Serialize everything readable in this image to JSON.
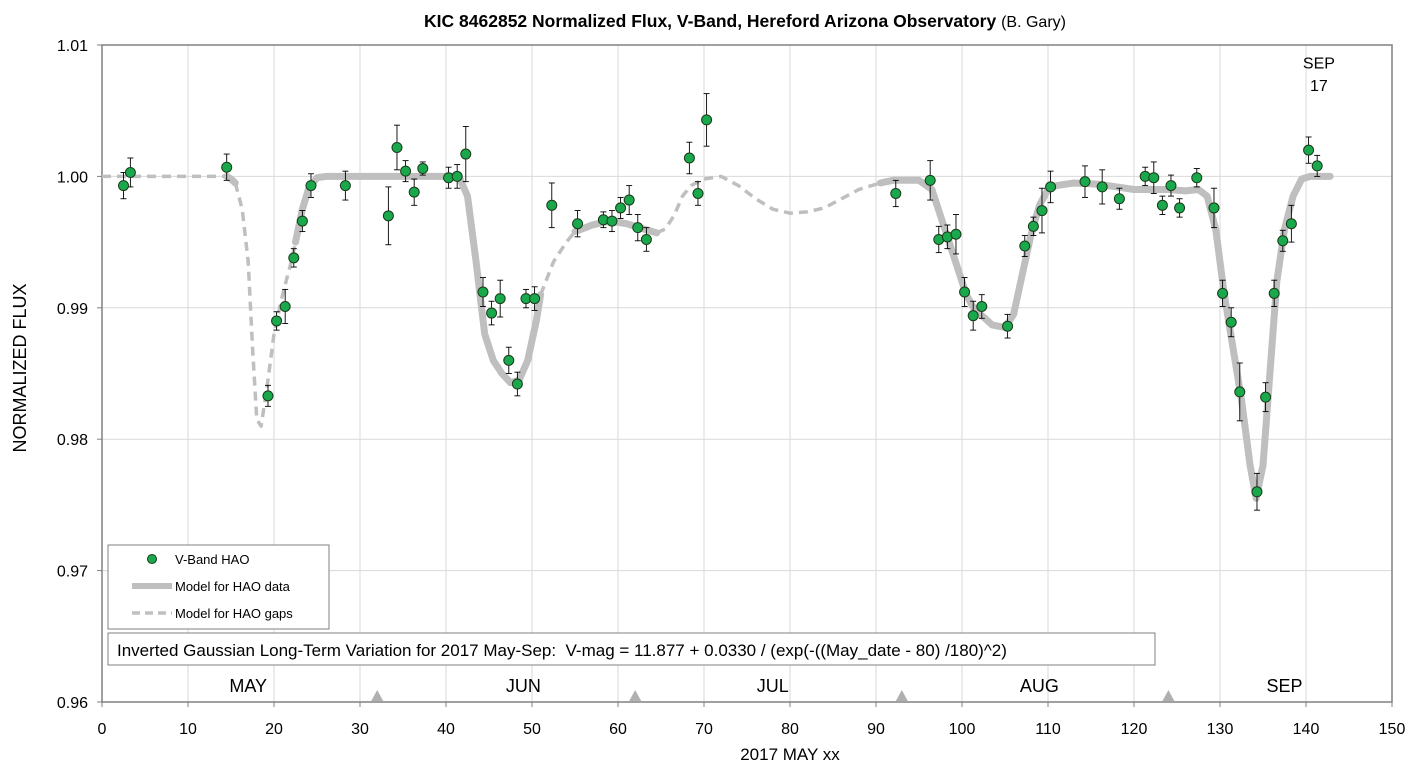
{
  "chart_data": {
    "type": "scatter",
    "title": "KIC 8462852 Normalized Flux, V-Band, Hereford Arizona Observatory",
    "title_credit": "(B. Gary)",
    "xlabel": "2017 MAY xx",
    "ylabel": "NORMALIZED FLUX",
    "xlim": [
      0,
      150
    ],
    "ylim": [
      0.96,
      1.01
    ],
    "x_ticks": [
      0,
      10,
      20,
      30,
      40,
      50,
      60,
      70,
      80,
      90,
      100,
      110,
      120,
      130,
      140,
      150
    ],
    "y_ticks": [
      0.96,
      0.97,
      0.98,
      0.99,
      1.0,
      1.01
    ],
    "y_tick_labels": [
      "0.96",
      "0.97",
      "0.98",
      "0.99",
      "1.00",
      "1.01"
    ],
    "grid": true,
    "legend_position": "bottom-left",
    "month_labels": [
      {
        "text": "MAY",
        "x": 17
      },
      {
        "text": "JUN",
        "x": 49
      },
      {
        "text": "JUL",
        "x": 78
      },
      {
        "text": "AUG",
        "x": 109
      },
      {
        "text": "SEP",
        "x": 137.5
      }
    ],
    "month_boundaries": [
      32,
      62,
      93,
      124
    ],
    "annotations": [
      {
        "text": "SEP",
        "x": 141.5,
        "y": 1.0082
      },
      {
        "text": "17",
        "x": 141.5,
        "y": 1.0065
      }
    ],
    "formula_box": "Inverted Gaussian Long-Term Variation for 2017 May-Sep:  V-mag = 11.877 + 0.0330 / (exp(-((May_date - 80) /180)^2)",
    "series": [
      {
        "name": "V-Band HAO",
        "kind": "points",
        "color": "#1aa84c",
        "points": [
          {
            "x": 2.5,
            "y": 0.9993,
            "err": 0.001
          },
          {
            "x": 3.3,
            "y": 1.0003,
            "err": 0.0011
          },
          {
            "x": 14.5,
            "y": 1.0007,
            "err": 0.001
          },
          {
            "x": 19.3,
            "y": 0.9833,
            "err": 0.0008
          },
          {
            "x": 20.3,
            "y": 0.989,
            "err": 0.0007
          },
          {
            "x": 21.3,
            "y": 0.9901,
            "err": 0.0013
          },
          {
            "x": 22.3,
            "y": 0.9938,
            "err": 0.0007
          },
          {
            "x": 23.3,
            "y": 0.9966,
            "err": 0.0008
          },
          {
            "x": 24.3,
            "y": 0.9993,
            "err": 0.0009
          },
          {
            "x": 28.3,
            "y": 0.9993,
            "err": 0.0011
          },
          {
            "x": 33.3,
            "y": 0.997,
            "err": 0.0022
          },
          {
            "x": 34.3,
            "y": 1.0022,
            "err": 0.0017
          },
          {
            "x": 35.3,
            "y": 1.0004,
            "err": 0.0008
          },
          {
            "x": 36.3,
            "y": 0.9988,
            "err": 0.001
          },
          {
            "x": 37.3,
            "y": 1.0006,
            "err": 0.0005
          },
          {
            "x": 40.3,
            "y": 0.9999,
            "err": 0.0008
          },
          {
            "x": 41.3,
            "y": 1.0,
            "err": 0.0009
          },
          {
            "x": 42.3,
            "y": 1.0017,
            "err": 0.0021
          },
          {
            "x": 44.3,
            "y": 0.9912,
            "err": 0.0011
          },
          {
            "x": 45.3,
            "y": 0.9896,
            "err": 0.0009
          },
          {
            "x": 46.3,
            "y": 0.9907,
            "err": 0.0014
          },
          {
            "x": 47.3,
            "y": 0.986,
            "err": 0.001
          },
          {
            "x": 48.3,
            "y": 0.9842,
            "err": 0.0009
          },
          {
            "x": 49.3,
            "y": 0.9907,
            "err": 0.0007
          },
          {
            "x": 50.3,
            "y": 0.9907,
            "err": 0.0009
          },
          {
            "x": 52.3,
            "y": 0.9978,
            "err": 0.0017
          },
          {
            "x": 55.3,
            "y": 0.9964,
            "err": 0.001
          },
          {
            "x": 58.3,
            "y": 0.9967,
            "err": 0.0006
          },
          {
            "x": 59.3,
            "y": 0.9966,
            "err": 0.0008
          },
          {
            "x": 60.3,
            "y": 0.9976,
            "err": 0.0008
          },
          {
            "x": 61.3,
            "y": 0.9982,
            "err": 0.0011
          },
          {
            "x": 62.3,
            "y": 0.9961,
            "err": 0.001
          },
          {
            "x": 63.3,
            "y": 0.9952,
            "err": 0.0009
          },
          {
            "x": 68.3,
            "y": 1.0014,
            "err": 0.0012
          },
          {
            "x": 69.3,
            "y": 0.9987,
            "err": 0.0009
          },
          {
            "x": 70.3,
            "y": 1.0043,
            "err": 0.002
          },
          {
            "x": 92.3,
            "y": 0.9987,
            "err": 0.001
          },
          {
            "x": 96.3,
            "y": 0.9997,
            "err": 0.0015
          },
          {
            "x": 97.3,
            "y": 0.9952,
            "err": 0.001
          },
          {
            "x": 98.3,
            "y": 0.9954,
            "err": 0.0009
          },
          {
            "x": 99.3,
            "y": 0.9956,
            "err": 0.0015
          },
          {
            "x": 100.3,
            "y": 0.9912,
            "err": 0.0011
          },
          {
            "x": 101.3,
            "y": 0.9894,
            "err": 0.0011
          },
          {
            "x": 102.3,
            "y": 0.9901,
            "err": 0.0009
          },
          {
            "x": 105.3,
            "y": 0.9886,
            "err": 0.0009
          },
          {
            "x": 107.3,
            "y": 0.9947,
            "err": 0.0008
          },
          {
            "x": 108.3,
            "y": 0.9962,
            "err": 0.0007
          },
          {
            "x": 109.3,
            "y": 0.9974,
            "err": 0.0017
          },
          {
            "x": 110.3,
            "y": 0.9992,
            "err": 0.0012
          },
          {
            "x": 114.3,
            "y": 0.9996,
            "err": 0.0012
          },
          {
            "x": 116.3,
            "y": 0.9992,
            "err": 0.0013
          },
          {
            "x": 118.3,
            "y": 0.9983,
            "err": 0.0008
          },
          {
            "x": 121.3,
            "y": 1.0,
            "err": 0.0007
          },
          {
            "x": 122.3,
            "y": 0.9999,
            "err": 0.0012
          },
          {
            "x": 123.3,
            "y": 0.9978,
            "err": 0.0007
          },
          {
            "x": 124.3,
            "y": 0.9993,
            "err": 0.0008
          },
          {
            "x": 125.3,
            "y": 0.9976,
            "err": 0.0007
          },
          {
            "x": 127.3,
            "y": 0.9999,
            "err": 0.0007
          },
          {
            "x": 129.3,
            "y": 0.9976,
            "err": 0.0015
          },
          {
            "x": 130.3,
            "y": 0.9911,
            "err": 0.001
          },
          {
            "x": 131.3,
            "y": 0.9889,
            "err": 0.0011
          },
          {
            "x": 132.3,
            "y": 0.9836,
            "err": 0.0022
          },
          {
            "x": 134.3,
            "y": 0.976,
            "err": 0.0014
          },
          {
            "x": 135.3,
            "y": 0.9832,
            "err": 0.0011
          },
          {
            "x": 136.3,
            "y": 0.9911,
            "err": 0.001
          },
          {
            "x": 137.3,
            "y": 0.9951,
            "err": 0.0008
          },
          {
            "x": 138.3,
            "y": 0.9964,
            "err": 0.0014
          },
          {
            "x": 140.3,
            "y": 1.002,
            "err": 0.001
          },
          {
            "x": 141.3,
            "y": 1.0008,
            "err": 0.0008
          }
        ]
      },
      {
        "name": "Model for HAO data",
        "kind": "solid",
        "color": "#bfbfbf",
        "segments": [
          [
            [
              14.5,
              1.0
            ],
            [
              15.0,
              0.9998
            ],
            [
              15.5,
              0.9995
            ]
          ],
          [
            [
              22.5,
              0.995
            ],
            [
              23.3,
              0.9975
            ],
            [
              24.0,
              0.999
            ],
            [
              25.0,
              0.9999
            ],
            [
              26.0,
              1.0
            ],
            [
              30,
              1.0
            ],
            [
              35,
              1.0
            ],
            [
              40,
              1.0
            ],
            [
              41.5,
              1.0
            ],
            [
              42.5,
              0.9985
            ],
            [
              43.5,
              0.9935
            ],
            [
              44.5,
              0.988
            ],
            [
              45.5,
              0.986
            ],
            [
              46.5,
              0.985
            ],
            [
              47.5,
              0.9843
            ],
            [
              48.5,
              0.9845
            ],
            [
              49.5,
              0.986
            ],
            [
              50.5,
              0.989
            ],
            [
              51.0,
              0.991
            ]
          ],
          [
            [
              55.0,
              0.9958
            ],
            [
              57,
              0.9963
            ],
            [
              59,
              0.9966
            ],
            [
              61,
              0.9964
            ],
            [
              63,
              0.996
            ],
            [
              64.5,
              0.9957
            ]
          ],
          [
            [
              90.5,
              0.9995
            ],
            [
              92,
              0.9997
            ],
            [
              95,
              0.9997
            ],
            [
              96.5,
              0.999
            ],
            [
              97.5,
              0.997
            ],
            [
              98.5,
              0.995
            ],
            [
              99.5,
              0.993
            ],
            [
              100.5,
              0.991
            ],
            [
              101.5,
              0.9898
            ],
            [
              102.5,
              0.9893
            ],
            [
              103.5,
              0.9887
            ],
            [
              105,
              0.9885
            ],
            [
              106,
              0.9895
            ],
            [
              107,
              0.9925
            ],
            [
              108,
              0.9955
            ],
            [
              109,
              0.9978
            ],
            [
              110,
              0.999
            ],
            [
              111,
              0.9993
            ],
            [
              113,
              0.9995
            ],
            [
              116,
              0.9994
            ],
            [
              118,
              0.9992
            ],
            [
              120,
              0.999
            ],
            [
              122,
              0.999
            ],
            [
              124,
              0.999
            ],
            [
              126,
              0.9989
            ],
            [
              127.5,
              0.999
            ],
            [
              128.5,
              0.9985
            ],
            [
              129.5,
              0.996
            ],
            [
              130.5,
              0.991
            ],
            [
              131.5,
              0.987
            ],
            [
              132.5,
              0.983
            ],
            [
              133.5,
              0.978
            ],
            [
              134.2,
              0.9755
            ],
            [
              135.0,
              0.978
            ],
            [
              135.8,
              0.985
            ],
            [
              136.6,
              0.992
            ],
            [
              137.5,
              0.996
            ],
            [
              138.5,
              0.9985
            ],
            [
              139.5,
              0.9998
            ],
            [
              140.5,
              1.0
            ],
            [
              141.5,
              1.0
            ],
            [
              142.8,
              1.0
            ]
          ]
        ]
      },
      {
        "name": "Model for HAO gaps",
        "kind": "dashed",
        "color": "#bfbfbf",
        "segments": [
          [
            [
              0,
              1.0
            ],
            [
              5,
              1.0
            ],
            [
              10,
              1.0
            ],
            [
              14.5,
              1.0
            ]
          ],
          [
            [
              15.5,
              0.9995
            ],
            [
              16.3,
              0.9975
            ],
            [
              17.0,
              0.9935
            ],
            [
              17.5,
              0.987
            ],
            [
              18.0,
              0.9815
            ],
            [
              18.5,
              0.981
            ],
            [
              19.2,
              0.984
            ],
            [
              20.0,
              0.988
            ],
            [
              21.0,
              0.991
            ],
            [
              22.0,
              0.9935
            ],
            [
              22.5,
              0.995
            ]
          ],
          [
            [
              51.0,
              0.991
            ],
            [
              52.5,
              0.9935
            ],
            [
              54.0,
              0.995
            ],
            [
              55.0,
              0.9958
            ]
          ],
          [
            [
              64.5,
              0.9957
            ],
            [
              65.5,
              0.996
            ],
            [
              66.5,
              0.997
            ],
            [
              67.5,
              0.9985
            ],
            [
              68.5,
              0.9993
            ],
            [
              70,
              0.9998
            ],
            [
              72,
              1.0
            ],
            [
              74,
              0.9993
            ],
            [
              76,
              0.9983
            ],
            [
              78,
              0.9975
            ],
            [
              80,
              0.9972
            ],
            [
              82,
              0.9973
            ],
            [
              84,
              0.9976
            ],
            [
              86,
              0.9983
            ],
            [
              88,
              0.999
            ],
            [
              90.5,
              0.9995
            ]
          ]
        ]
      }
    ]
  }
}
